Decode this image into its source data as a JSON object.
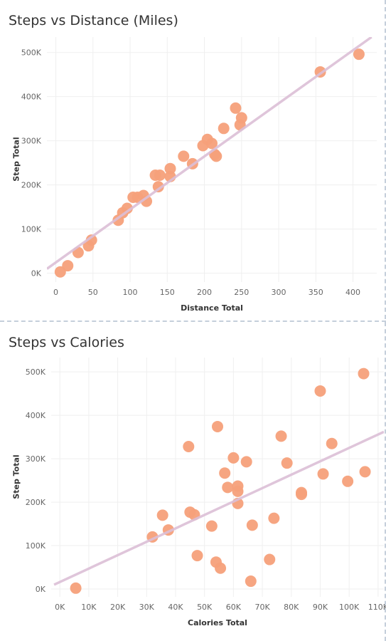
{
  "chart_data": [
    {
      "type": "scatter",
      "title": "Steps vs Distance (Miles)",
      "xlabel": "Distance Total",
      "ylabel": "Step Total",
      "xlim": [
        -12,
        432
      ],
      "ylim": [
        -20000,
        535000
      ],
      "x_ticks": [
        0,
        50,
        100,
        150,
        200,
        250,
        300,
        350,
        400
      ],
      "x_tick_labels": [
        "0",
        "50",
        "100",
        "150",
        "200",
        "250",
        "300",
        "350",
        "400"
      ],
      "y_ticks": [
        0,
        100000,
        200000,
        300000,
        400000,
        500000
      ],
      "y_tick_labels": [
        "0K",
        "100K",
        "200K",
        "300K",
        "400K",
        "500K"
      ],
      "trend_line": [
        [
          -12,
          10000
        ],
        [
          425,
          535000
        ]
      ],
      "point_color": "#f5a07a",
      "trend_color": "#dbbfd6",
      "points": [
        [
          6,
          3000
        ],
        [
          16,
          17000
        ],
        [
          30,
          47000
        ],
        [
          44,
          62000
        ],
        [
          48,
          75000
        ],
        [
          84,
          120000
        ],
        [
          90,
          137000
        ],
        [
          96,
          147000
        ],
        [
          104,
          172000
        ],
        [
          110,
          172000
        ],
        [
          118,
          176000
        ],
        [
          122,
          163000
        ],
        [
          134,
          222000
        ],
        [
          140,
          222000
        ],
        [
          138,
          196000
        ],
        [
          154,
          237000
        ],
        [
          154,
          219000
        ],
        [
          172,
          265000
        ],
        [
          184,
          248000
        ],
        [
          198,
          289000
        ],
        [
          204,
          303000
        ],
        [
          210,
          294000
        ],
        [
          214,
          269000
        ],
        [
          216,
          265000
        ],
        [
          226,
          328000
        ],
        [
          242,
          374000
        ],
        [
          248,
          336000
        ],
        [
          250,
          352000
        ],
        [
          356,
          456000
        ],
        [
          408,
          496000
        ]
      ]
    },
    {
      "type": "scatter",
      "title": "Steps vs Calories",
      "xlabel": "Calories Total",
      "ylabel": "Step Total",
      "xlim": [
        -3000,
        112000
      ],
      "ylim": [
        -18000,
        533000
      ],
      "x_ticks": [
        0,
        10000,
        20000,
        30000,
        40000,
        50000,
        60000,
        70000,
        80000,
        90000,
        100000,
        110000
      ],
      "x_tick_labels": [
        "0K",
        "10K",
        "20K",
        "30K",
        "40K",
        "50K",
        "60K",
        "70K",
        "80K",
        "90K",
        "100K",
        "110K"
      ],
      "y_ticks": [
        0,
        100000,
        200000,
        300000,
        400000,
        500000
      ],
      "y_tick_labels": [
        "0K",
        "100K",
        "200K",
        "300K",
        "400K",
        "500K"
      ],
      "trend_line": [
        [
          -2000,
          10000
        ],
        [
          112000,
          362000
        ]
      ],
      "point_color": "#f5a07a",
      "trend_color": "#dbbfd6",
      "points": [
        [
          5500,
          2000
        ],
        [
          32000,
          120000
        ],
        [
          35500,
          170000
        ],
        [
          37500,
          136000
        ],
        [
          44500,
          328000
        ],
        [
          45000,
          177000
        ],
        [
          46500,
          171000
        ],
        [
          47500,
          77000
        ],
        [
          52500,
          145000
        ],
        [
          54000,
          62000
        ],
        [
          54500,
          374000
        ],
        [
          55500,
          48000
        ],
        [
          57000,
          267000
        ],
        [
          58000,
          234000
        ],
        [
          60000,
          302000
        ],
        [
          61500,
          237000
        ],
        [
          61500,
          225000
        ],
        [
          61500,
          197000
        ],
        [
          64500,
          293000
        ],
        [
          66000,
          18000
        ],
        [
          66500,
          147000
        ],
        [
          72500,
          68000
        ],
        [
          74000,
          163000
        ],
        [
          76500,
          352000
        ],
        [
          78500,
          290000
        ],
        [
          83500,
          218000
        ],
        [
          83500,
          222000
        ],
        [
          90000,
          456000
        ],
        [
          91000,
          265000
        ],
        [
          94000,
          335000
        ],
        [
          99500,
          248000
        ],
        [
          105000,
          496000
        ],
        [
          105500,
          270000
        ]
      ]
    }
  ]
}
